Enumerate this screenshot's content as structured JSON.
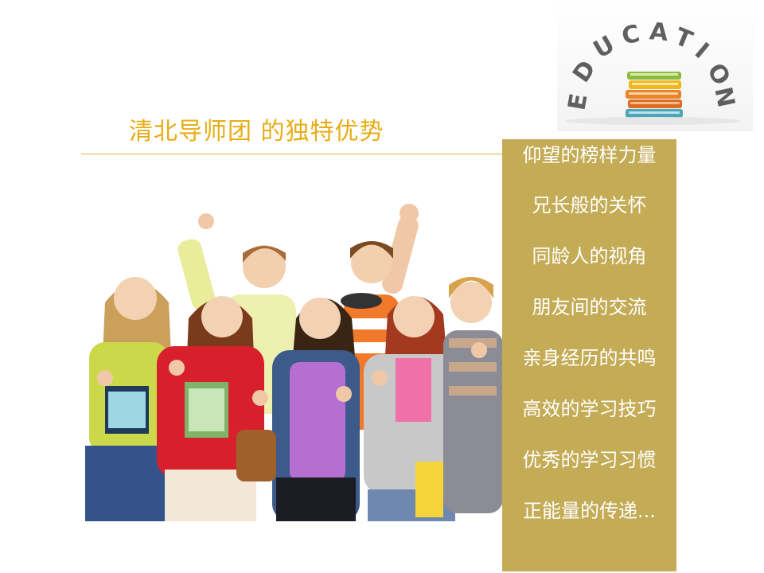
{
  "slide": {
    "title": "清北导师团 的独特优势",
    "logo_word": "EDUCATION",
    "advantages": [
      "仰望的榜样力量",
      "兄长般的关怀",
      "同龄人的视角",
      "朋友间的交流",
      "亲身经历的共鸣",
      "高效的学习技巧",
      "优秀的学习习惯",
      "正能量的传递..."
    ]
  },
  "colors": {
    "title": "#e7ad15",
    "panel": "#c4ab55",
    "panel_text": "#ffffff",
    "rule": "#e2b23a"
  },
  "images": {
    "logo": "education-books-logo",
    "photo": "students-thumbs-up-photo"
  }
}
